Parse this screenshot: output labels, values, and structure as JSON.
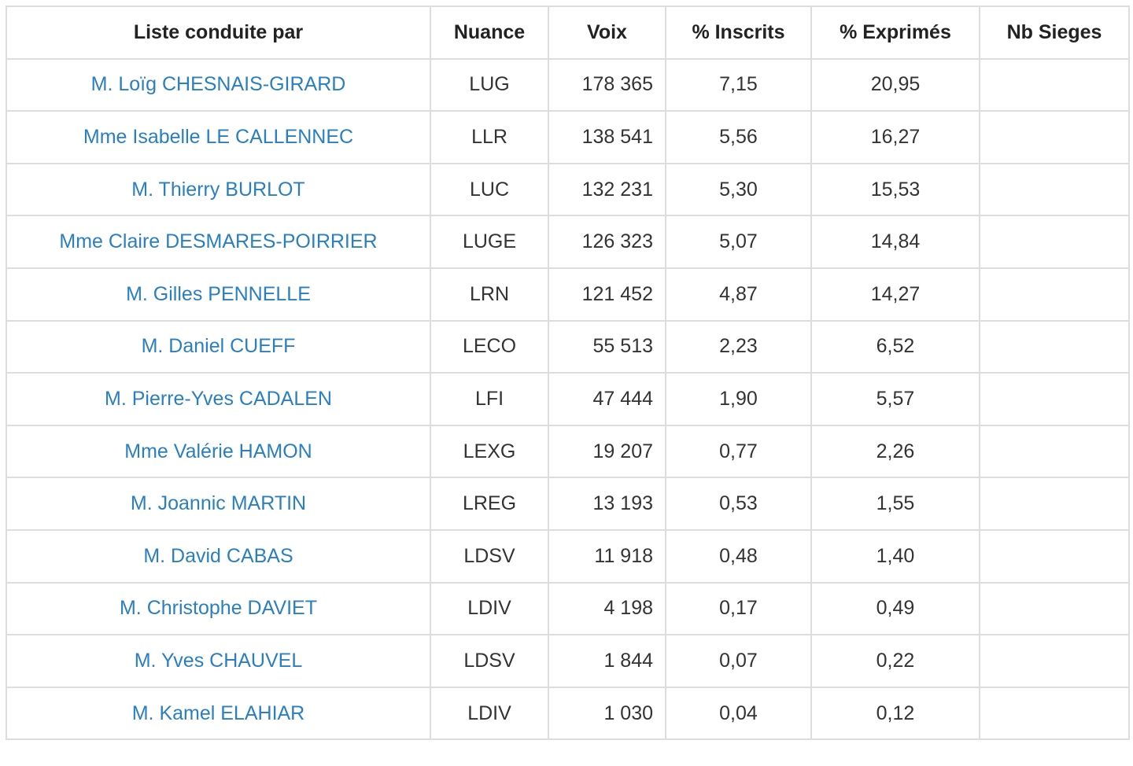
{
  "table": {
    "headers": {
      "liste": "Liste conduite par",
      "nuance": "Nuance",
      "voix": "Voix",
      "inscrits": "% Inscrits",
      "exprimes": "% Exprimés",
      "sieges": "Nb Sieges"
    },
    "rows": [
      {
        "name": "M. Loïg CHESNAIS-GIRARD",
        "nuance": "LUG",
        "voix": "178 365",
        "inscrits": "7,15",
        "exprimes": "20,95",
        "sieges": ""
      },
      {
        "name": "Mme Isabelle LE CALLENNEC",
        "nuance": "LLR",
        "voix": "138 541",
        "inscrits": "5,56",
        "exprimes": "16,27",
        "sieges": ""
      },
      {
        "name": "M. Thierry BURLOT",
        "nuance": "LUC",
        "voix": "132 231",
        "inscrits": "5,30",
        "exprimes": "15,53",
        "sieges": ""
      },
      {
        "name": "Mme Claire DESMARES-POIRRIER",
        "nuance": "LUGE",
        "voix": "126 323",
        "inscrits": "5,07",
        "exprimes": "14,84",
        "sieges": ""
      },
      {
        "name": "M. Gilles PENNELLE",
        "nuance": "LRN",
        "voix": "121 452",
        "inscrits": "4,87",
        "exprimes": "14,27",
        "sieges": ""
      },
      {
        "name": "M. Daniel CUEFF",
        "nuance": "LECO",
        "voix": "55 513",
        "inscrits": "2,23",
        "exprimes": "6,52",
        "sieges": ""
      },
      {
        "name": "M. Pierre-Yves CADALEN",
        "nuance": "LFI",
        "voix": "47 444",
        "inscrits": "1,90",
        "exprimes": "5,57",
        "sieges": ""
      },
      {
        "name": "Mme Valérie HAMON",
        "nuance": "LEXG",
        "voix": "19 207",
        "inscrits": "0,77",
        "exprimes": "2,26",
        "sieges": ""
      },
      {
        "name": "M. Joannic MARTIN",
        "nuance": "LREG",
        "voix": "13 193",
        "inscrits": "0,53",
        "exprimes": "1,55",
        "sieges": ""
      },
      {
        "name": "M. David CABAS",
        "nuance": "LDSV",
        "voix": "11 918",
        "inscrits": "0,48",
        "exprimes": "1,40",
        "sieges": ""
      },
      {
        "name": "M. Christophe DAVIET",
        "nuance": "LDIV",
        "voix": "4 198",
        "inscrits": "0,17",
        "exprimes": "0,49",
        "sieges": ""
      },
      {
        "name": "M. Yves CHAUVEL",
        "nuance": "LDSV",
        "voix": "1 844",
        "inscrits": "0,07",
        "exprimes": "0,22",
        "sieges": ""
      },
      {
        "name": "M. Kamel ELAHIAR",
        "nuance": "LDIV",
        "voix": "1 030",
        "inscrits": "0,04",
        "exprimes": "0,12",
        "sieges": ""
      }
    ]
  },
  "colors": {
    "link": "#2a7fc1",
    "border": "#dddddd",
    "text": "#333333"
  }
}
